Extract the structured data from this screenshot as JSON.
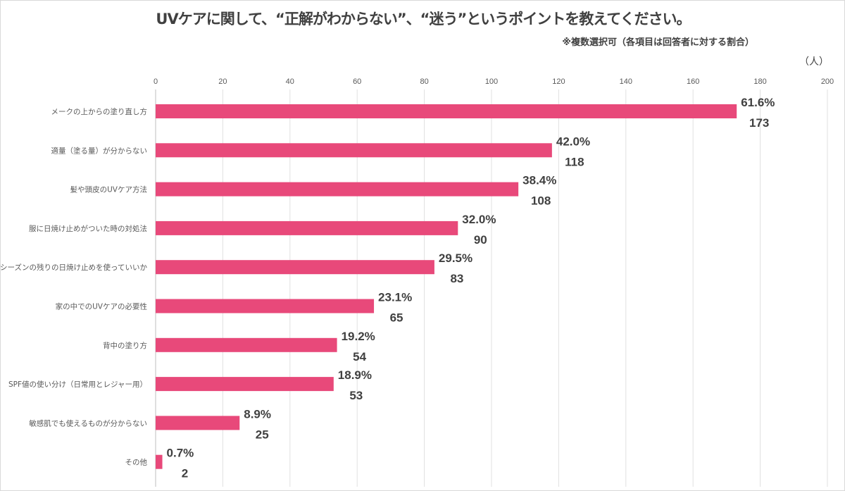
{
  "chart_data": {
    "type": "bar",
    "orientation": "horizontal",
    "title": "UVケアに関して、“正解がわからない”、“迷う”というポイントを教えてください。",
    "subtitle": "※複数選択可（各項目は回答者に対する割合）",
    "unit": "（人）",
    "xlim": [
      0,
      200
    ],
    "xticks": [
      0,
      20,
      40,
      60,
      80,
      100,
      120,
      140,
      160,
      180,
      200
    ],
    "grid": true,
    "bar_color": "#E8497A",
    "categories": [
      "メークの上からの塗り直し方",
      "適量（塗る量）が分からない",
      "髪や頭皮のUVケア方法",
      "服に日焼け止めがついた時の対処法",
      "去シーズンの残りの日焼け止めを使っていいか",
      "家の中でのUVケアの必要性",
      "背中の塗り方",
      "SPF値の使い分け（日常用とレジャー用）",
      "敏感肌でも使えるものが分からない",
      "その他"
    ],
    "values": [
      173,
      118,
      108,
      90,
      83,
      65,
      54,
      53,
      25,
      2
    ],
    "percent_labels": [
      "61.6%",
      "42.0%",
      "38.4%",
      "32.0%",
      "29.5%",
      "23.1%",
      "19.2%",
      "18.9%",
      "8.9%",
      "0.7%"
    ]
  }
}
